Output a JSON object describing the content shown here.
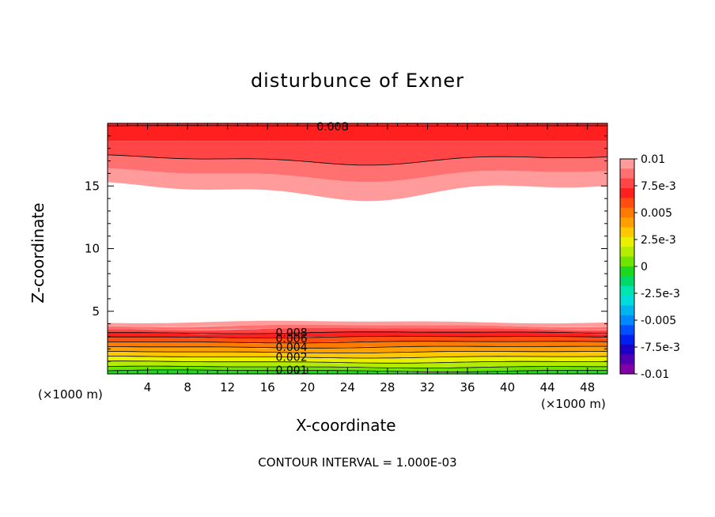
{
  "chart_data": {
    "type": "contour",
    "title": "disturbunce of Exner",
    "xlabel": "X-coordinate",
    "ylabel": "Z-coordinate",
    "x_unit_left": "(×1000 m)",
    "x_unit_right": "(×1000 m)",
    "footer": "CONTOUR INTERVAL = 1.000E-03",
    "xlim": [
      0,
      50
    ],
    "ylim": [
      0,
      20
    ],
    "x_ticks": [
      4,
      8,
      12,
      16,
      20,
      24,
      28,
      32,
      36,
      40,
      44,
      48
    ],
    "y_ticks": [
      5,
      10,
      15
    ],
    "contour_interval": 0.001,
    "contour_labels_bottom": [
      "0.008",
      "0.006",
      "0.004",
      "0.002",
      "0.001"
    ],
    "contour_labels_top": [
      "0.008"
    ],
    "colorbar": {
      "labels": [
        "0.01",
        "7.5e-3",
        "0.005",
        "2.5e-3",
        "0",
        "-2.5e-3",
        "-0.005",
        "-7.5e-3",
        "-0.01"
      ],
      "colors": [
        "#ff9b9b",
        "#ff7070",
        "#ff4545",
        "#ff1f1f",
        "#ff4e0f",
        "#ff7a00",
        "#ffa000",
        "#ffc800",
        "#e9f000",
        "#b4ec00",
        "#6fe400",
        "#1ed81e",
        "#00d868",
        "#00e4b0",
        "#00dcdc",
        "#00b4f0",
        "#0088ff",
        "#0050ff",
        "#0020f0",
        "#1c00c8",
        "#5000b4",
        "#8200a8"
      ]
    },
    "bottom_layer_levels": [
      0.008,
      0.007,
      0.006,
      0.005,
      0.004,
      0.003,
      0.002,
      0.001,
      0.0
    ],
    "top_layer_levels": [
      0.008,
      0.007,
      0.006,
      0.005
    ]
  }
}
